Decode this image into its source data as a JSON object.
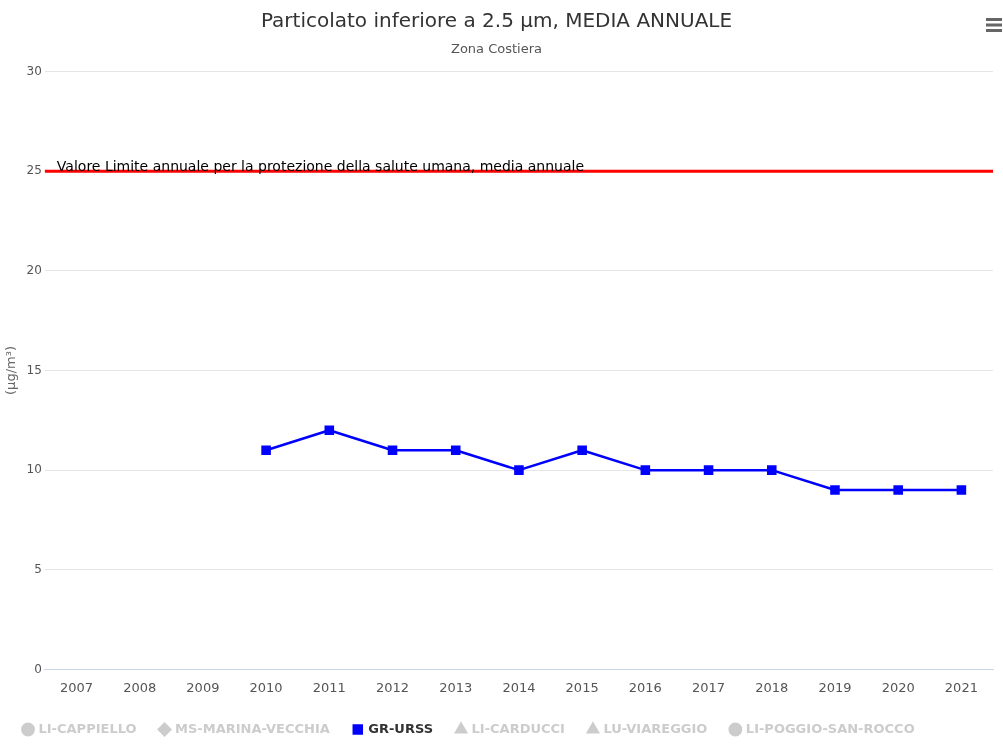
{
  "chart_data": {
    "type": "line",
    "title": "Particolato inferiore a 2.5 µm, MEDIA ANNUALE",
    "subtitle": "Zona Costiera",
    "ylabel": "(µg/m³)",
    "categories": [
      "2007",
      "2008",
      "2009",
      "2010",
      "2011",
      "2012",
      "2013",
      "2014",
      "2015",
      "2016",
      "2017",
      "2018",
      "2019",
      "2020",
      "2021"
    ],
    "series": [
      {
        "name": "LI-CAPPIELLO",
        "color": "#cccccc",
        "marker": "circle",
        "values": [
          null,
          null,
          null,
          null,
          null,
          null,
          null,
          null,
          null,
          null,
          null,
          null,
          null,
          null,
          null
        ]
      },
      {
        "name": "MS-MARINA-VECCHIA",
        "color": "#cccccc",
        "marker": "diamond",
        "values": [
          null,
          null,
          null,
          null,
          null,
          null,
          null,
          null,
          null,
          null,
          null,
          null,
          null,
          null,
          null
        ]
      },
      {
        "name": "GR-URSS",
        "color": "#0000ff",
        "marker": "square",
        "values": [
          null,
          null,
          null,
          11,
          12,
          11,
          11,
          10,
          11,
          10,
          10,
          10,
          9,
          9,
          9
        ]
      },
      {
        "name": "LI-CARDUCCI",
        "color": "#cccccc",
        "marker": "triangle",
        "values": [
          null,
          null,
          null,
          null,
          null,
          null,
          null,
          null,
          null,
          null,
          null,
          null,
          null,
          null,
          null
        ]
      },
      {
        "name": "LU-VIAREGGIO",
        "color": "#cccccc",
        "marker": "triangle",
        "values": [
          null,
          null,
          null,
          null,
          null,
          null,
          null,
          null,
          null,
          null,
          null,
          null,
          null,
          null,
          null
        ]
      },
      {
        "name": "LI-POGGIO-SAN-ROCCO",
        "color": "#cccccc",
        "marker": "circle",
        "values": [
          null,
          null,
          null,
          null,
          null,
          null,
          null,
          null,
          null,
          null,
          null,
          null,
          null,
          null,
          null
        ]
      }
    ],
    "ylim": [
      0,
      30
    ],
    "yticks": [
      0,
      5,
      10,
      15,
      20,
      25,
      30
    ],
    "grid": "y",
    "legend": "bottom",
    "line_style": "solid",
    "ref_lines": [
      {
        "axis": "y",
        "value": 25,
        "label": "Valore Limite annuale per la protezione della salute umana, media annuale",
        "color": "#ff0000"
      }
    ]
  }
}
